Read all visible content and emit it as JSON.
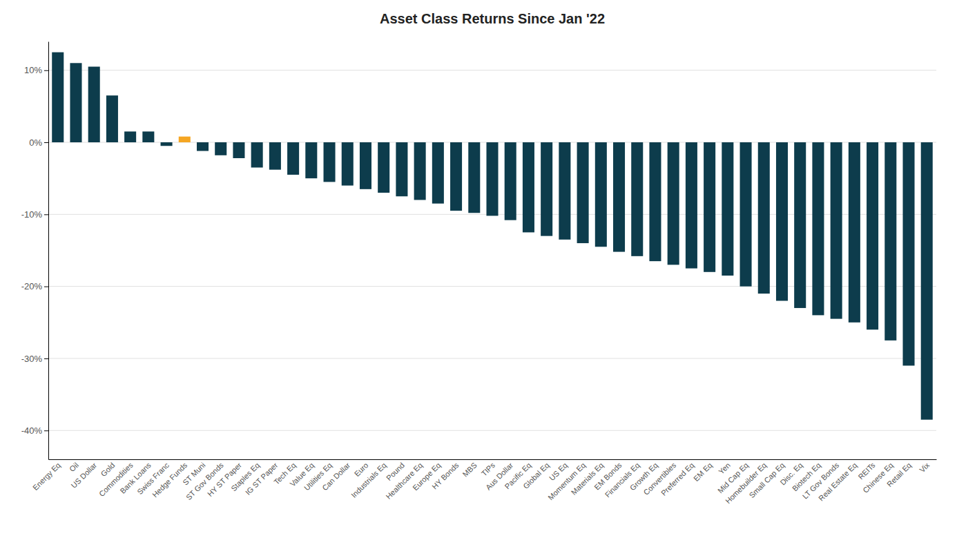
{
  "chart_data": {
    "type": "bar",
    "title": "Asset Class Returns Since Jan '22",
    "categories": [
      "Energy Eq",
      "Oil",
      "US Dollar",
      "Gold",
      "Commodities",
      "Bank Loans",
      "Swiss Franc",
      "Hedge Funds",
      "ST Muni",
      "ST Gov Bonds",
      "HY ST Paper",
      "Staples Eq",
      "IG ST Paper",
      "Tech Eq",
      "Value Eq",
      "Utilities Eq",
      "Can Dollar",
      "Euro",
      "Industrials Eq",
      "Pound",
      "Healthcare Eq",
      "Europe Eq",
      "HY Bonds",
      "MBS",
      "TIPs",
      "Aus Dollar",
      "Pacific Eq",
      "Global Eq",
      "US Eq",
      "Momentum Eq",
      "Materials Eq",
      "EM Bonds",
      "Financials Eq",
      "Growth Eq",
      "Convertibles",
      "Preferred Eq",
      "EM Eq",
      "Yen",
      "Mid Cap Eq",
      "Homebuilder Eq",
      "Small Cap Eq",
      "Disc. Eq",
      "Biotech Eq",
      "LT Gov Bonds",
      "Real Estate Eq",
      "REITs",
      "Chinese Eq",
      "Retail Eq",
      "Vix"
    ],
    "values": [
      12.5,
      11.0,
      10.5,
      6.5,
      1.5,
      1.5,
      -0.5,
      0.8,
      -1.2,
      -1.8,
      -2.2,
      -3.5,
      -3.8,
      -4.5,
      -5.0,
      -5.5,
      -6.0,
      -6.5,
      -7.0,
      -7.5,
      -8.0,
      -8.5,
      -9.5,
      -9.8,
      -10.2,
      -10.8,
      -12.5,
      -13.0,
      -13.5,
      -14.0,
      -14.5,
      -15.2,
      -15.8,
      -16.5,
      -17.0,
      -17.5,
      -18.0,
      -18.5,
      -20.0,
      -21.0,
      -22.0,
      -23.0,
      -24.0,
      -24.5,
      -25.0,
      -26.0,
      -27.5,
      -31.0,
      -38.5
    ],
    "colors": [
      "#0D3C4C",
      "#0D3C4C",
      "#0D3C4C",
      "#0D3C4C",
      "#0D3C4C",
      "#0D3C4C",
      "#0D3C4C",
      "#F5A623",
      "#0D3C4C",
      "#0D3C4C",
      "#0D3C4C",
      "#0D3C4C",
      "#0D3C4C",
      "#0D3C4C",
      "#0D3C4C",
      "#0D3C4C",
      "#0D3C4C",
      "#0D3C4C",
      "#0D3C4C",
      "#0D3C4C",
      "#0D3C4C",
      "#0D3C4C",
      "#0D3C4C",
      "#0D3C4C",
      "#0D3C4C",
      "#0D3C4C",
      "#0D3C4C",
      "#0D3C4C",
      "#0D3C4C",
      "#0D3C4C",
      "#0D3C4C",
      "#0D3C4C",
      "#0D3C4C",
      "#0D3C4C",
      "#0D3C4C",
      "#0D3C4C",
      "#0D3C4C",
      "#0D3C4C",
      "#0D3C4C",
      "#0D3C4C",
      "#0D3C4C",
      "#0D3C4C",
      "#0D3C4C",
      "#0D3C4C",
      "#0D3C4C",
      "#0D3C4C",
      "#0D3C4C",
      "#0D3C4C",
      "#0D3C4C"
    ],
    "ylim": [
      -44,
      14
    ],
    "yticks": [
      {
        "value": -40,
        "label": "-40%"
      },
      {
        "value": -30,
        "label": "-30%"
      },
      {
        "value": -20,
        "label": "-20%"
      },
      {
        "value": -10,
        "label": "-10%"
      },
      {
        "value": 0,
        "label": "0%"
      },
      {
        "value": 10,
        "label": "10%"
      }
    ],
    "grid": true
  }
}
